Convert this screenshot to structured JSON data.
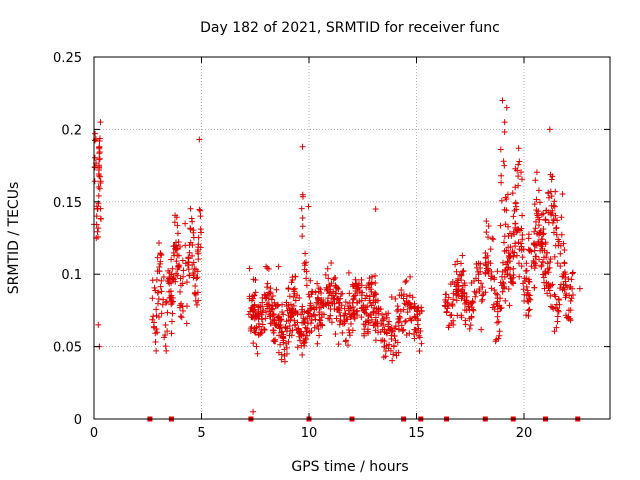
{
  "chart_data": {
    "type": "scatter",
    "title": "Day 182 of 2021, SRMTID for receiver func",
    "xlabel": "GPS time / hours",
    "ylabel": "SRMTID / TECUs",
    "xlim": [
      0,
      24
    ],
    "ylim": [
      0,
      0.25
    ],
    "x_ticks": [
      0,
      5,
      10,
      15,
      20
    ],
    "x_tick_labels": [
      "0",
      "5",
      "10",
      "15",
      "20"
    ],
    "y_ticks": [
      0,
      0.05,
      0.1,
      0.15,
      0.2,
      0.25
    ],
    "y_tick_labels": [
      "0",
      "0.05",
      "0.1",
      "0.15",
      "0.2",
      "0.25"
    ],
    "grid": true,
    "marker": "+",
    "colors": {
      "series": "#e00000",
      "grid": "#b0b0b0",
      "axis": "#000000"
    },
    "zero_level_markers_x": [
      2.6,
      3.6,
      7.3,
      10.0,
      12.0,
      14.4,
      15.2,
      16.4,
      18.2,
      19.5,
      21.0,
      22.5
    ],
    "segments": [
      {
        "x0": 0.0,
        "x1": 0.35,
        "mean": 0.155,
        "amp": 0.04,
        "spread": 0.025,
        "n": 45
      },
      {
        "x0": 2.7,
        "x1": 3.5,
        "mean": 0.085,
        "amp": 0.03,
        "spread": 0.025,
        "n": 55
      },
      {
        "x0": 3.5,
        "x1": 4.3,
        "mean": 0.105,
        "amp": 0.04,
        "spread": 0.03,
        "n": 70
      },
      {
        "x0": 4.3,
        "x1": 5.0,
        "mean": 0.11,
        "amp": 0.04,
        "spread": 0.03,
        "n": 55
      },
      {
        "x0": 7.2,
        "x1": 8.5,
        "mean": 0.075,
        "amp": 0.015,
        "spread": 0.02,
        "n": 130
      },
      {
        "x0": 8.5,
        "x1": 10.0,
        "mean": 0.07,
        "amp": 0.02,
        "spread": 0.022,
        "n": 140
      },
      {
        "x0": 9.5,
        "x1": 10.0,
        "mean": 0.12,
        "amp": 0.04,
        "spread": 0.03,
        "n": 15
      },
      {
        "x0": 10.0,
        "x1": 12.5,
        "mean": 0.078,
        "amp": 0.015,
        "spread": 0.02,
        "n": 200
      },
      {
        "x0": 12.5,
        "x1": 15.3,
        "mean": 0.068,
        "amp": 0.015,
        "spread": 0.022,
        "n": 200
      },
      {
        "x0": 16.3,
        "x1": 18.0,
        "mean": 0.085,
        "amp": 0.02,
        "spread": 0.02,
        "n": 110
      },
      {
        "x0": 18.0,
        "x1": 19.5,
        "mean": 0.095,
        "amp": 0.03,
        "spread": 0.025,
        "n": 110
      },
      {
        "x0": 18.8,
        "x1": 20.0,
        "mean": 0.15,
        "amp": 0.04,
        "spread": 0.03,
        "n": 35
      },
      {
        "x0": 19.5,
        "x1": 21.3,
        "mean": 0.11,
        "amp": 0.03,
        "spread": 0.025,
        "n": 140
      },
      {
        "x0": 20.5,
        "x1": 21.8,
        "mean": 0.14,
        "amp": 0.025,
        "spread": 0.025,
        "n": 60
      },
      {
        "x0": 21.3,
        "x1": 22.3,
        "mean": 0.09,
        "amp": 0.02,
        "spread": 0.02,
        "n": 60
      }
    ],
    "extra_points": [
      {
        "x": 19.0,
        "y": 0.22
      },
      {
        "x": 19.2,
        "y": 0.215
      },
      {
        "x": 19.1,
        "y": 0.205
      },
      {
        "x": 21.2,
        "y": 0.2
      },
      {
        "x": 0.3,
        "y": 0.205
      },
      {
        "x": 22.6,
        "y": 0.09
      },
      {
        "x": 7.4,
        "y": 0.005
      },
      {
        "x": 0.2,
        "y": 0.065
      },
      {
        "x": 0.25,
        "y": 0.05
      },
      {
        "x": 9.7,
        "y": 0.188
      },
      {
        "x": 4.9,
        "y": 0.193
      },
      {
        "x": 13.1,
        "y": 0.145
      }
    ]
  }
}
